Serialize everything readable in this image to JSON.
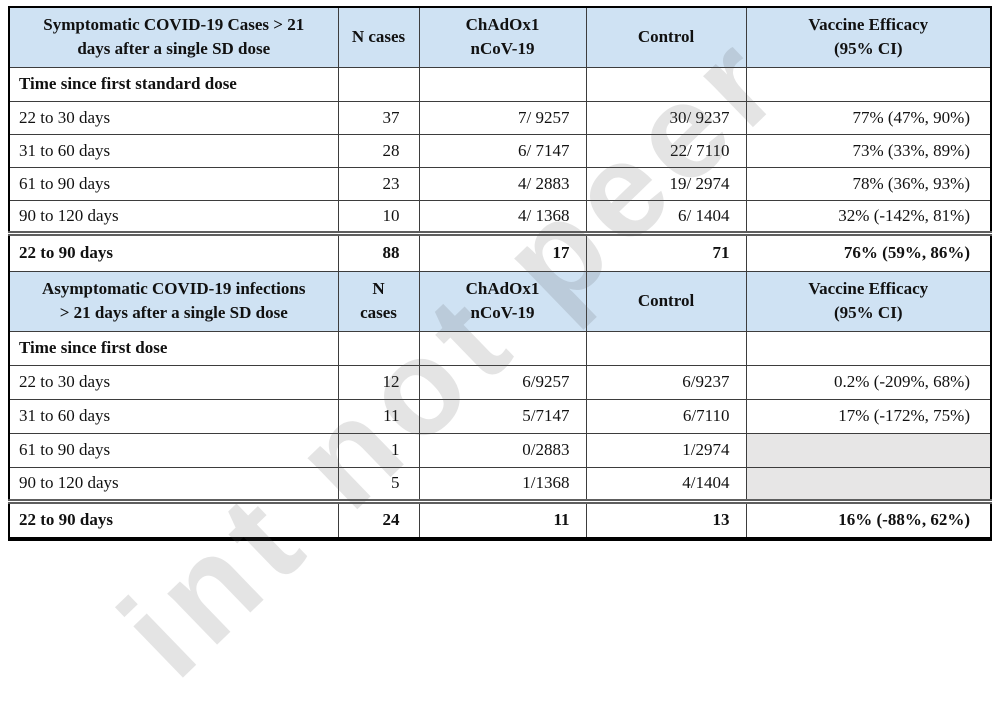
{
  "watermark": "int not peer",
  "colors": {
    "header_bg": "#cfe2f3",
    "empty_cell_bg": "#e7e6e6",
    "outer_border": "#000000",
    "inner_border": "#3d3d3d"
  },
  "section1": {
    "header": {
      "title_line1": "Symptomatic COVID-19 Cases > 21",
      "title_line2": "days after a single SD dose",
      "n_cases": "N cases",
      "vaccine_line1": "ChAdOx1",
      "vaccine_line2": "nCoV-19",
      "control": "Control",
      "efficacy_line1": "Vaccine Efficacy",
      "efficacy_line2": "(95% CI)"
    },
    "subheader": "Time since first standard dose",
    "rows": [
      {
        "label": "22 to 30 days",
        "n": "37",
        "vaccine": "7/ 9257",
        "control": "30/ 9237",
        "efficacy": "77% (47%, 90%)"
      },
      {
        "label": "31 to 60 days",
        "n": "28",
        "vaccine": "6/ 7147",
        "control": "22/ 7110",
        "efficacy": "73% (33%, 89%)"
      },
      {
        "label": "61 to 90 days",
        "n": "23",
        "vaccine": "4/ 2883",
        "control": "19/ 2974",
        "efficacy": "78% (36%, 93%)"
      },
      {
        "label": "90 to 120 days",
        "n": "10",
        "vaccine": "4/ 1368",
        "control": "6/ 1404",
        "efficacy": "32% (-142%, 81%)"
      }
    ],
    "summary": {
      "label": "22 to 90 days",
      "n": "88",
      "vaccine": "17",
      "control": "71",
      "efficacy": "76% (59%, 86%)"
    }
  },
  "section2": {
    "header": {
      "title_line1": "Asymptomatic COVID-19 infections",
      "title_line2": "> 21 days after a single SD dose",
      "n_line1": "N",
      "n_line2": "cases",
      "vaccine_line1": "ChAdOx1",
      "vaccine_line2": "nCoV-19",
      "control": "Control",
      "efficacy_line1": "Vaccine Efficacy",
      "efficacy_line2": "(95% CI)"
    },
    "subheader": "Time since first dose",
    "rows": [
      {
        "label": "22 to 30 days",
        "n": "12",
        "vaccine": "6/9257",
        "control": "6/9237",
        "efficacy": "0.2% (-209%, 68%)"
      },
      {
        "label": "31 to 60 days",
        "n": "11",
        "vaccine": "5/7147",
        "control": "6/7110",
        "efficacy": "17% (-172%, 75%)"
      },
      {
        "label": "61 to 90 days",
        "n": "1",
        "vaccine": "0/2883",
        "control": "1/2974",
        "efficacy": ""
      },
      {
        "label": "90 to 120 days",
        "n": "5",
        "vaccine": "1/1368",
        "control": "4/1404",
        "efficacy": ""
      }
    ],
    "summary": {
      "label": "22 to 90 days",
      "n": "24",
      "vaccine": "11",
      "control": "13",
      "efficacy": "16% (-88%, 62%)"
    }
  }
}
